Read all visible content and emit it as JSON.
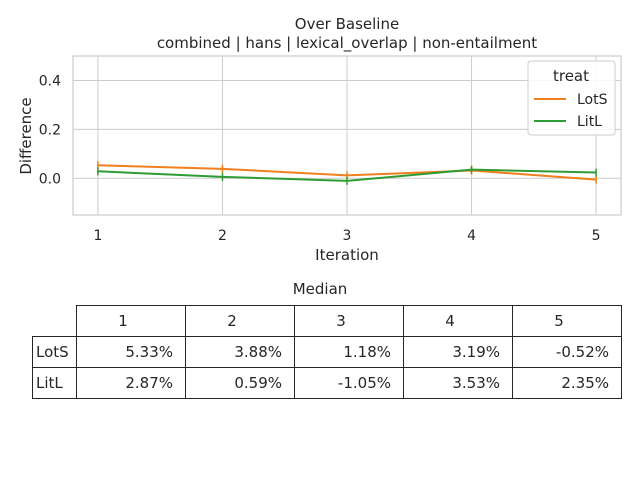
{
  "chart_data": {
    "type": "line",
    "title": "Over Baseline",
    "subtitle": "combined | hans | lexical_overlap | non-entailment",
    "xlabel": "Iteration",
    "ylabel": "Difference",
    "x": [
      1,
      2,
      3,
      4,
      5
    ],
    "x_ticks": [
      "1",
      "2",
      "3",
      "4",
      "5"
    ],
    "y_ticks": [
      "0.0",
      "0.2",
      "0.4"
    ],
    "y_tick_values": [
      0.0,
      0.2,
      0.4
    ],
    "xlim": [
      0.8,
      5.2
    ],
    "ylim": [
      -0.15,
      0.5
    ],
    "grid": true,
    "legend_title": "treat",
    "legend_position": "top-right",
    "series": [
      {
        "name": "LotS",
        "color": "#f07f1d",
        "values": [
          0.0533,
          0.0388,
          0.0118,
          0.0319,
          -0.0052
        ]
      },
      {
        "name": "LitL",
        "color": "#2e9c34",
        "values": [
          0.0287,
          0.0059,
          -0.0105,
          0.0353,
          0.0235
        ]
      }
    ]
  },
  "table": {
    "title": "Median",
    "columns": [
      "1",
      "2",
      "3",
      "4",
      "5"
    ],
    "rows": [
      {
        "label": "LotS",
        "cells": [
          "5.33%",
          "3.88%",
          "1.18%",
          "3.19%",
          "-0.52%"
        ]
      },
      {
        "label": "LitL",
        "cells": [
          "2.87%",
          "0.59%",
          "-1.05%",
          "3.53%",
          "2.35%"
        ]
      }
    ]
  }
}
